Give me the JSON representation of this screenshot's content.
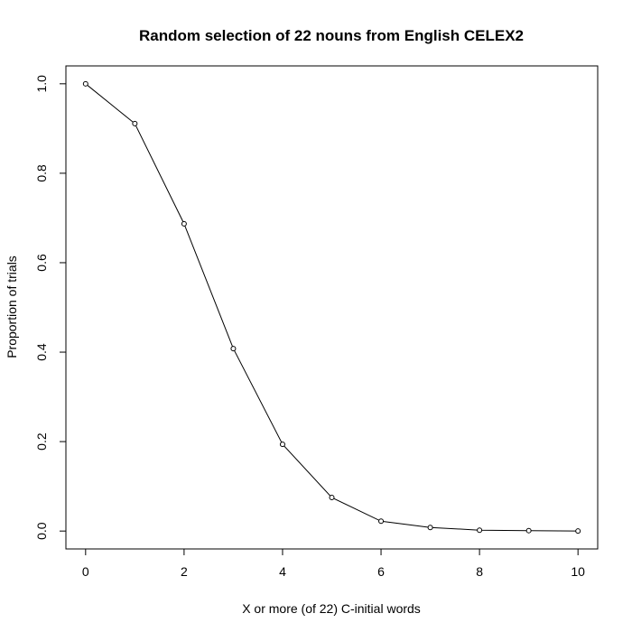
{
  "chart_data": {
    "type": "line",
    "title": "Random selection of 22 nouns from English CELEX2",
    "x_label": "X or more (of 22) C-initial words",
    "y_label": "Proportion of trials",
    "x": [
      0,
      1,
      2,
      3,
      4,
      5,
      6,
      7,
      8,
      9,
      10
    ],
    "values": [
      1.0,
      0.911,
      0.687,
      0.408,
      0.194,
      0.075,
      0.022,
      0.008,
      0.002,
      0.001,
      0.0
    ],
    "color": "#000000",
    "markers": true,
    "xlim": [
      -0.4,
      10.4
    ],
    "ylim": [
      -0.04,
      1.04
    ],
    "xticks": [
      0,
      2,
      4,
      6,
      8,
      10
    ],
    "yticks": [
      {
        "value": 0,
        "label": "0.0"
      },
      {
        "value": 0.2,
        "label": "0.2"
      },
      {
        "value": 0.4,
        "label": "0.4"
      },
      {
        "value": 0.6,
        "label": "0.6"
      },
      {
        "value": 0.8,
        "label": "0.8"
      },
      {
        "value": 1,
        "label": "1.0"
      }
    ]
  }
}
